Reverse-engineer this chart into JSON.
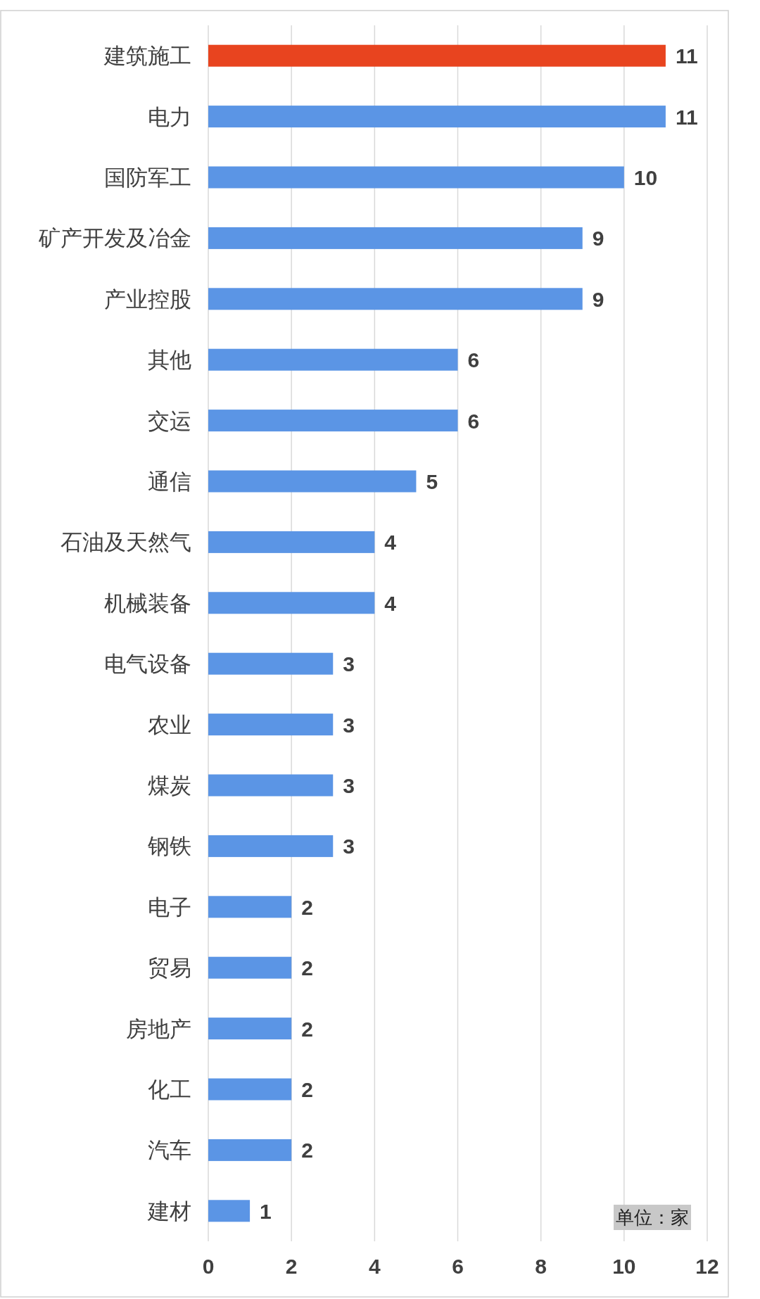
{
  "chart_data": {
    "type": "bar",
    "orientation": "horizontal",
    "categories": [
      "建筑施工",
      "电力",
      "国防军工",
      "矿产开发及冶金",
      "产业控股",
      "其他",
      "交运",
      "通信",
      "石油及天然气",
      "机械装备",
      "电气设备",
      "农业",
      "煤炭",
      "钢铁",
      "电子",
      "贸易",
      "房地产",
      "化工",
      "汽车",
      "建材"
    ],
    "values": [
      11,
      11,
      10,
      9,
      9,
      6,
      6,
      5,
      4,
      4,
      3,
      3,
      3,
      3,
      2,
      2,
      2,
      2,
      2,
      1
    ],
    "colors": [
      "#e8441f",
      "#5b95e5",
      "#5b95e5",
      "#5b95e5",
      "#5b95e5",
      "#5b95e5",
      "#5b95e5",
      "#5b95e5",
      "#5b95e5",
      "#5b95e5",
      "#5b95e5",
      "#5b95e5",
      "#5b95e5",
      "#5b95e5",
      "#5b95e5",
      "#5b95e5",
      "#5b95e5",
      "#5b95e5",
      "#5b95e5",
      "#5b95e5"
    ],
    "xlim": [
      0,
      12
    ],
    "xticks": [
      0,
      2,
      4,
      6,
      8,
      10,
      12
    ],
    "grid": "x",
    "data_labels": true,
    "annotations": [
      "单位：家"
    ]
  }
}
